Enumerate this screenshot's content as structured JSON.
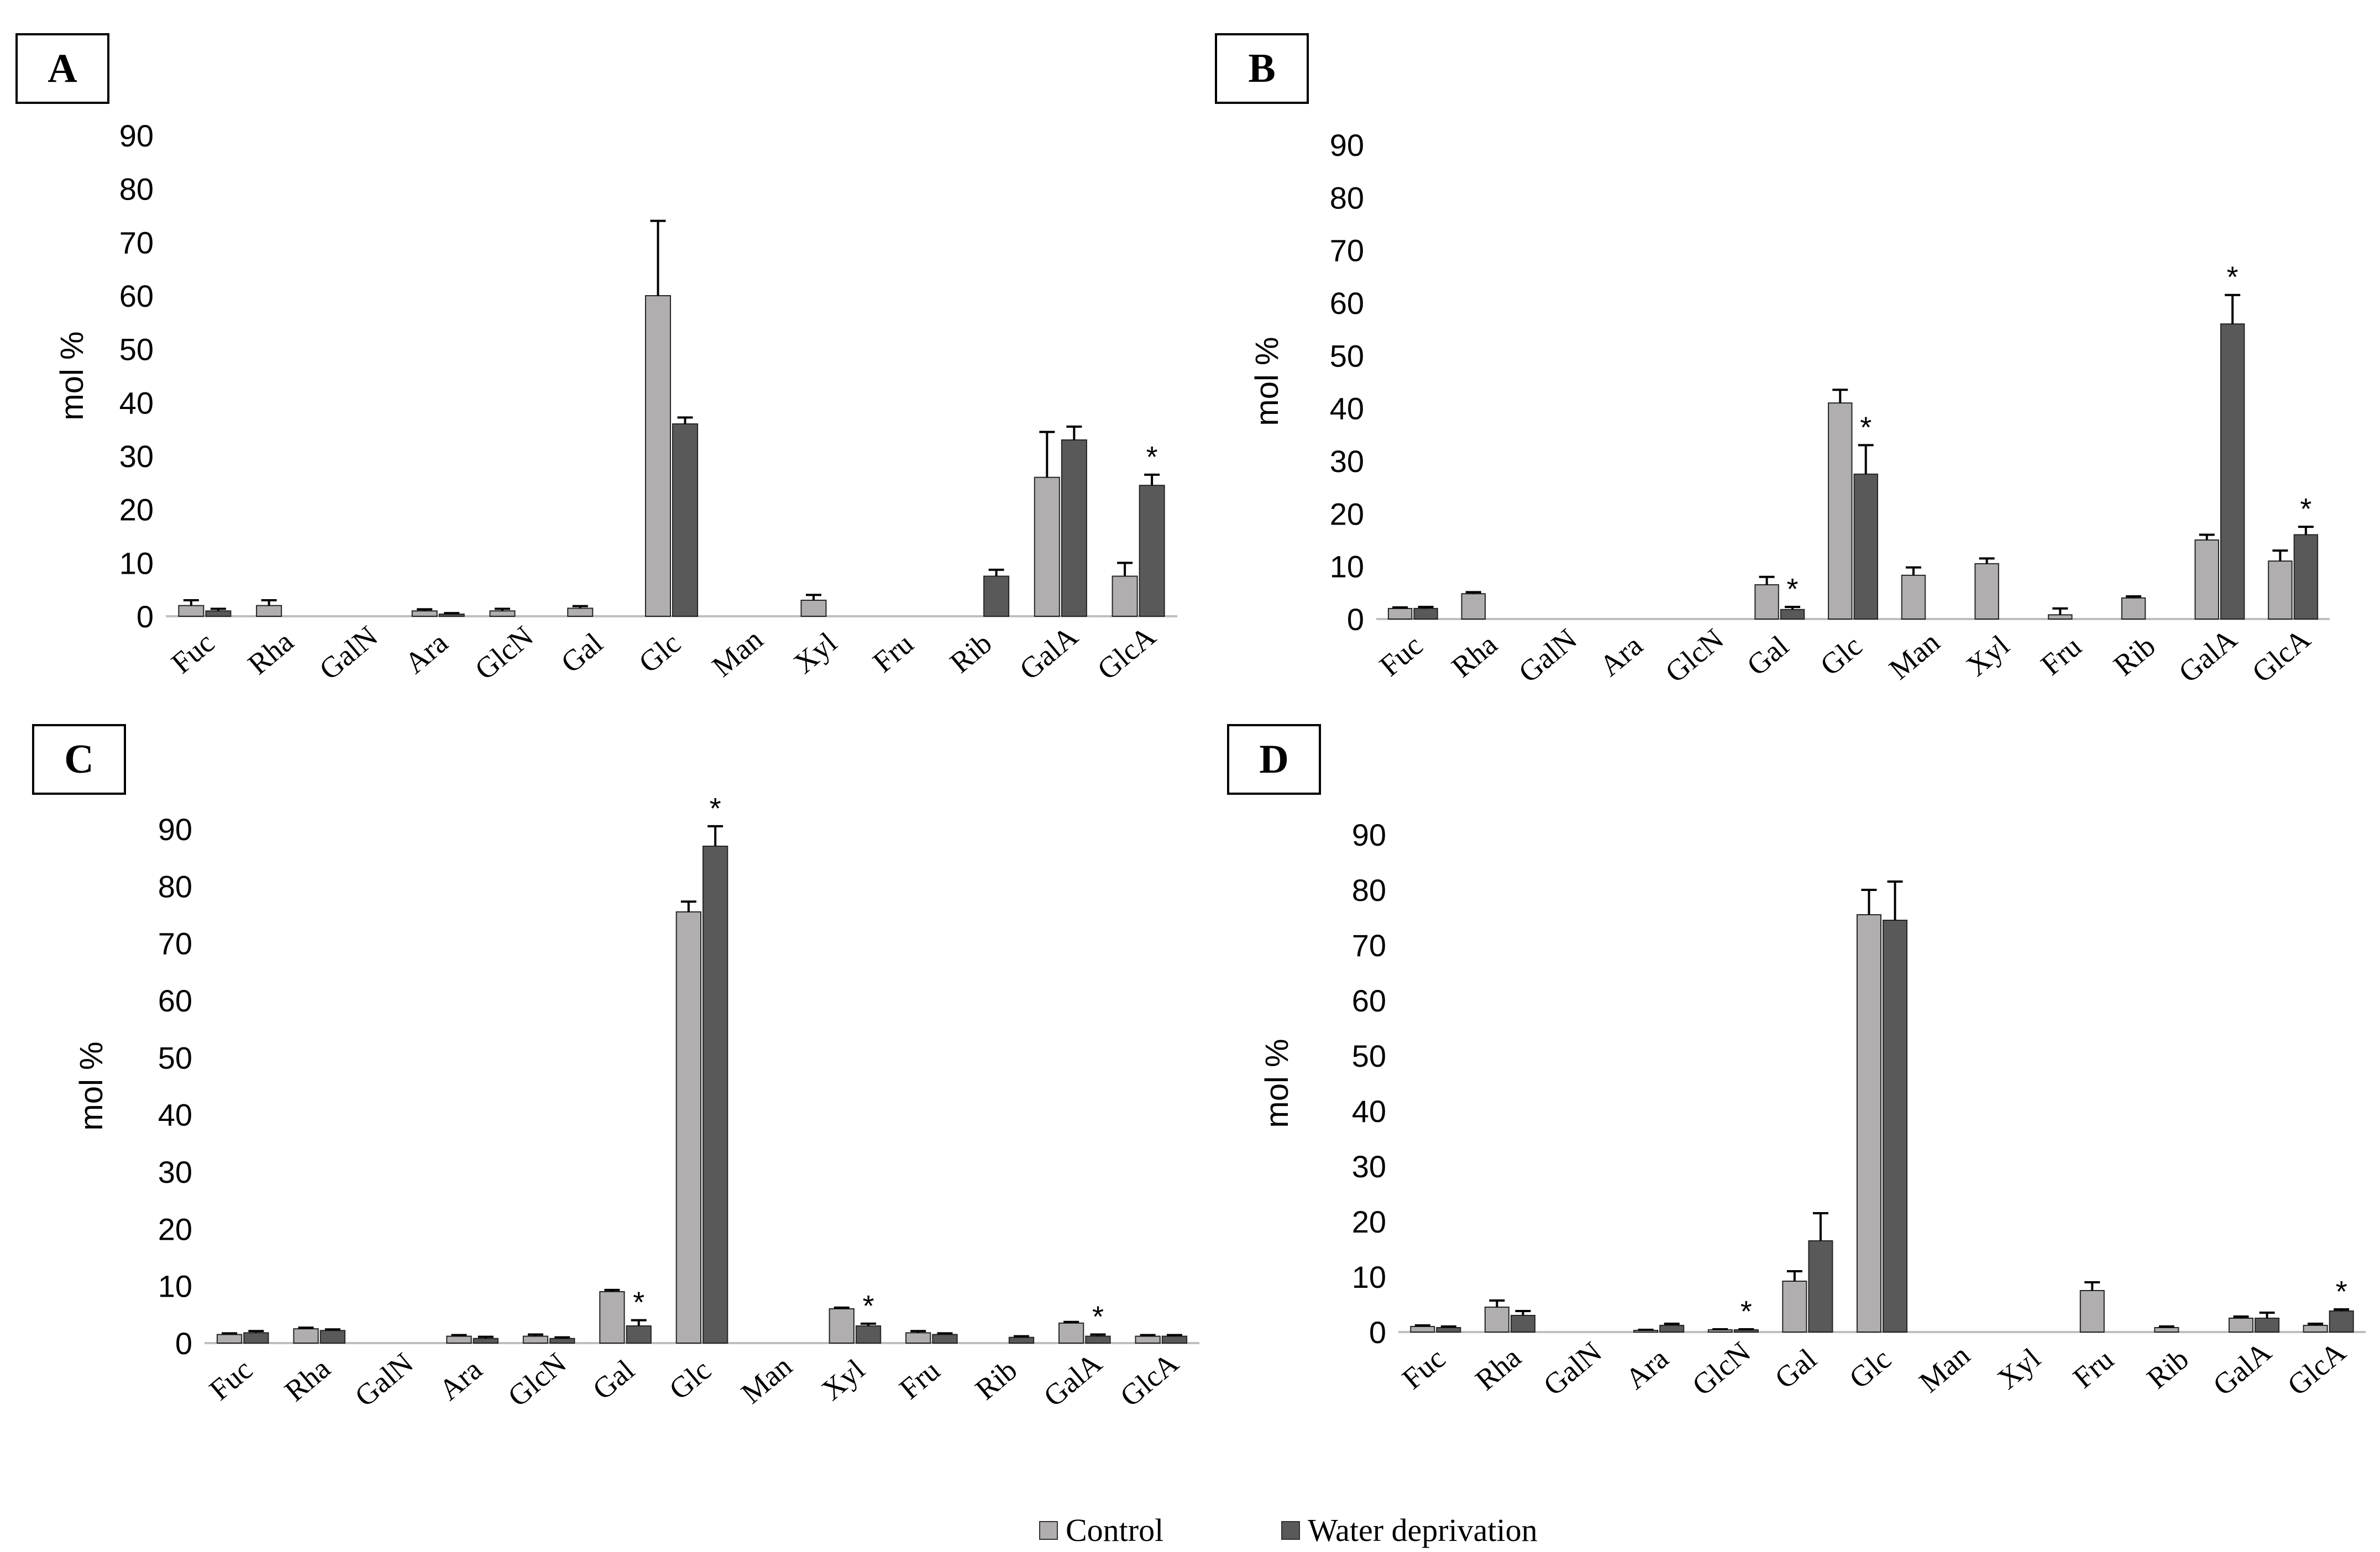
{
  "legend": {
    "control_label": "Control",
    "wd_label": "Water deprivation",
    "control_color": "#b0aeae",
    "wd_color": "#595959"
  },
  "chart_data": [
    {
      "type": "bar",
      "panel": "A",
      "ylabel": "mol %",
      "ylim": [
        0,
        90
      ],
      "yticks": [
        "0",
        "10",
        "20",
        "30",
        "40",
        "50",
        "60",
        "70",
        "80",
        "90"
      ],
      "categories": [
        "Fuc",
        "Rha",
        "GalN",
        "Ara",
        "GlcN",
        "Gal",
        "Glc",
        "Man",
        "Xyl",
        "Fru",
        "Rib",
        "GalA",
        "GlcA"
      ],
      "series": [
        {
          "name": "Control",
          "values": [
            2,
            2,
            0,
            1,
            1,
            1.5,
            60,
            0,
            3,
            0,
            0,
            26,
            7.5
          ],
          "errors": [
            1,
            1,
            0,
            0.3,
            0.4,
            0.4,
            14,
            0,
            1,
            0,
            0,
            8.5,
            2.5
          ]
        },
        {
          "name": "Water deprivation",
          "values": [
            1,
            0,
            0,
            0.4,
            0,
            0,
            36,
            0,
            0,
            0,
            7.5,
            33,
            24.5
          ],
          "errors": [
            0.4,
            0,
            0,
            0.2,
            0,
            0,
            1.2,
            0,
            0,
            0,
            1.2,
            2.5,
            2
          ]
        }
      ],
      "significance": [
        "",
        "",
        "",
        "",
        "",
        "",
        "",
        "",
        "",
        "",
        "",
        "",
        "*"
      ]
    },
    {
      "type": "bar",
      "panel": "B",
      "ylabel": "mol %",
      "ylim": [
        0,
        90
      ],
      "yticks": [
        "0",
        "10",
        "20",
        "30",
        "40",
        "50",
        "60",
        "70",
        "80",
        "90"
      ],
      "categories": [
        "Fuc",
        "Rha",
        "GalN",
        "Ara",
        "GlcN",
        "Gal",
        "Glc",
        "Man",
        "Xyl",
        "Fru",
        "Rib",
        "GalA",
        "GlcA"
      ],
      "series": [
        {
          "name": "Control",
          "values": [
            2,
            4.8,
            0,
            0,
            0,
            6.5,
            41,
            8.3,
            10.5,
            0.8,
            4,
            15,
            11
          ],
          "errors": [
            0.2,
            0.3,
            0,
            0,
            0,
            1.5,
            2.5,
            1.5,
            1,
            1.2,
            0.3,
            1,
            2
          ]
        },
        {
          "name": "Water deprivation",
          "values": [
            2,
            0,
            0,
            0,
            0,
            1.8,
            27.5,
            0,
            0,
            0,
            0,
            56,
            16
          ],
          "errors": [
            0.3,
            0,
            0,
            0,
            0,
            0.5,
            5.5,
            0,
            0,
            0,
            0,
            5.5,
            1.5
          ]
        }
      ],
      "significance": [
        "",
        "",
        "",
        "",
        "",
        "*",
        "*",
        "",
        "",
        "",
        "",
        "*",
        "*"
      ]
    },
    {
      "type": "bar",
      "panel": "C",
      "ylabel": "mol %",
      "ylim": [
        0,
        90
      ],
      "yticks": [
        "0",
        "10",
        "20",
        "30",
        "40",
        "50",
        "60",
        "70",
        "80",
        "90"
      ],
      "categories": [
        "Fuc",
        "Rha",
        "GalN",
        "Ara",
        "GlcN",
        "Gal",
        "Glc",
        "Man",
        "Xyl",
        "Fru",
        "Rib",
        "GalA",
        "GlcA"
      ],
      "series": [
        {
          "name": "Control",
          "values": [
            1.5,
            2.5,
            0,
            1.2,
            1.2,
            9,
            75.5,
            0,
            6,
            1.8,
            0,
            3.5,
            1.2
          ],
          "errors": [
            0.2,
            0.2,
            0,
            0.2,
            0.3,
            0.3,
            1.8,
            0,
            0.2,
            0.3,
            0,
            0.2,
            0.2
          ]
        },
        {
          "name": "Water deprivation",
          "values": [
            1.8,
            2.2,
            0,
            0.8,
            0.8,
            3,
            87,
            0,
            3,
            1.5,
            1,
            1.2,
            1.2
          ],
          "errors": [
            0.3,
            0.2,
            0,
            0.3,
            0.2,
            1,
            3.5,
            0,
            0.4,
            0.2,
            0.2,
            0.3,
            0.2
          ]
        }
      ],
      "significance": [
        "",
        "",
        "",
        "",
        "",
        "*",
        "*",
        "",
        "*",
        "",
        "",
        "*",
        ""
      ]
    },
    {
      "type": "bar",
      "panel": "D",
      "ylabel": "mol %",
      "ylim": [
        0,
        90
      ],
      "yticks": [
        "0",
        "10",
        "20",
        "30",
        "40",
        "50",
        "60",
        "70",
        "80",
        "90"
      ],
      "categories": [
        "Fuc",
        "Rha",
        "GalN",
        "Ara",
        "GlcN",
        "Gal",
        "Glc",
        "Man",
        "Xyl",
        "Fru",
        "Rib",
        "GalA",
        "GlcA"
      ],
      "series": [
        {
          "name": "Control",
          "values": [
            1,
            4.5,
            0,
            0.3,
            0.4,
            9.2,
            75.5,
            0,
            0,
            7.5,
            0.8,
            2.5,
            1.2
          ],
          "errors": [
            0.2,
            1.2,
            0,
            0.1,
            0.1,
            1.8,
            4.5,
            0,
            0,
            1.5,
            0.2,
            0.3,
            0.3
          ]
        },
        {
          "name": "Water deprivation",
          "values": [
            0.8,
            3,
            0,
            1.2,
            0.4,
            16.5,
            74.5,
            0,
            0,
            0,
            0,
            2.5,
            3.8
          ],
          "errors": [
            0.2,
            0.8,
            0,
            0.3,
            0.1,
            5,
            7,
            0,
            0,
            0,
            0,
            1,
            0.3
          ]
        }
      ],
      "significance": [
        "",
        "",
        "",
        "",
        "*",
        "",
        "",
        "",
        "",
        "",
        "",
        "",
        "*"
      ]
    }
  ]
}
